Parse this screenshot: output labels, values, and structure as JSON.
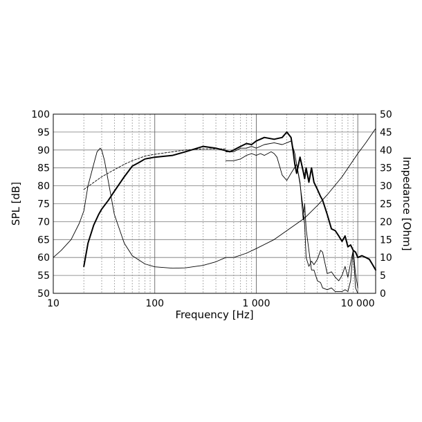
{
  "chart_data": {
    "type": "line",
    "xlabel": "Frequency [Hz]",
    "ylabel": "SPL [dB]",
    "y2label": "Impedance [Ohm]",
    "xscale": "log",
    "xlim": [
      10,
      15000
    ],
    "ylim": [
      50,
      100
    ],
    "y2lim": [
      0,
      50
    ],
    "x_ticks": [
      10,
      100,
      1000,
      10000
    ],
    "x_tick_labels": [
      "10",
      "100",
      "1 000",
      "10 000"
    ],
    "y_ticks": [
      50,
      55,
      60,
      65,
      70,
      75,
      80,
      85,
      90,
      95,
      100
    ],
    "y2_ticks": [
      0,
      5,
      10,
      15,
      20,
      25,
      30,
      35,
      40,
      45,
      50
    ],
    "grid": true,
    "series": [
      {
        "axis": "left",
        "style": "thick",
        "x": [
          20,
          22,
          25,
          28,
          30,
          35,
          40,
          50,
          60,
          70,
          80,
          100,
          150,
          200,
          300,
          400,
          500,
          550,
          600,
          700,
          800,
          900,
          1000,
          1200,
          1500,
          1800,
          2000,
          2200,
          2300,
          2400,
          2500,
          2700,
          2900,
          3000,
          3100,
          3300,
          3500,
          3700,
          4000,
          4300,
          4500,
          5000,
          5500,
          6000,
          6500,
          7000,
          7500,
          8000,
          8500,
          9000,
          9500,
          10000,
          11000,
          12000,
          13000,
          14000,
          15000
        ],
        "values": [
          57.5,
          64,
          69,
          72,
          73.5,
          76,
          78.5,
          82.5,
          85.5,
          86.5,
          87.5,
          88,
          88.5,
          89.5,
          91,
          90.5,
          89.8,
          89.5,
          90,
          91,
          91.8,
          91.5,
          92.5,
          93.5,
          93,
          93.5,
          95,
          93.5,
          90,
          86,
          83.5,
          88,
          84,
          82,
          85,
          81,
          85,
          81,
          79,
          77,
          76,
          72,
          68,
          67.5,
          66,
          64.5,
          66,
          63,
          63.5,
          62,
          61.5,
          60,
          60.5,
          60,
          59.5,
          58,
          56.5
        ]
      },
      {
        "axis": "left",
        "style": "thin",
        "x": [
          500,
          600,
          700,
          800,
          900,
          1000,
          1200,
          1500,
          1800,
          2000,
          2200,
          2400,
          2500,
          2700,
          2900,
          3000,
          3100,
          3300,
          3500,
          3700,
          4000,
          4300,
          4500,
          5000,
          5500,
          6000,
          6500,
          7000,
          7500,
          8000,
          8500,
          9000,
          9500,
          10000
        ],
        "values": [
          89.5,
          89.5,
          90.5,
          90.5,
          91,
          90.5,
          91.5,
          92,
          91.5,
          92,
          92.5,
          89,
          86,
          80.5,
          73.5,
          69,
          60,
          57.5,
          59,
          58,
          59.5,
          62,
          61.5,
          55.5,
          56,
          54.5,
          53.5,
          55,
          57.5,
          54.5,
          58.5,
          62,
          55.5,
          51.5
        ]
      },
      {
        "axis": "left",
        "style": "thin",
        "x": [
          500,
          600,
          700,
          800,
          900,
          1000,
          1100,
          1200,
          1400,
          1500,
          1600,
          1800,
          2000,
          2200,
          2500,
          2700,
          2900,
          3000,
          3100,
          3300,
          3500,
          3700,
          4000,
          4300,
          4500,
          5000,
          5500,
          6000,
          6500,
          7000,
          7500,
          8000,
          8500,
          9000,
          9500,
          10000
        ],
        "values": [
          87,
          87,
          87.5,
          88.5,
          89,
          88.5,
          89,
          88.5,
          89.5,
          89,
          88,
          83,
          81.5,
          83.5,
          86,
          81,
          70.5,
          75,
          68,
          62,
          56.5,
          56.5,
          53.5,
          53,
          51.5,
          51,
          51.5,
          50.5,
          50.5,
          50.5,
          51,
          50.5,
          53.5,
          62,
          51.5,
          50
        ]
      },
      {
        "axis": "left",
        "style": "dashed",
        "x": [
          20,
          30,
          40,
          50,
          60,
          80,
          100,
          150,
          200,
          300,
          400,
          500
        ],
        "values": [
          79,
          82.5,
          84.5,
          86,
          87,
          88.3,
          88.8,
          89.5,
          90,
          90.3,
          90.3,
          90.3
        ]
      },
      {
        "axis": "right",
        "style": "thin",
        "x": [
          10,
          12,
          15,
          18,
          20,
          22,
          25,
          27,
          29,
          30,
          32,
          35,
          40,
          50,
          60,
          80,
          100,
          150,
          200,
          300,
          400,
          500,
          600,
          800,
          1000,
          1500,
          2000,
          3000,
          4000,
          5000,
          7000,
          10000,
          12000,
          15000
        ],
        "values": [
          10,
          12,
          15,
          19.5,
          23,
          30,
          36,
          39.5,
          40.5,
          40,
          37,
          31,
          22,
          14,
          10.5,
          8.2,
          7.4,
          7,
          7.1,
          7.8,
          8.8,
          10,
          10,
          11.2,
          12.5,
          15,
          17.5,
          21,
          24.5,
          27.5,
          32.5,
          39,
          42,
          46
        ]
      }
    ]
  }
}
